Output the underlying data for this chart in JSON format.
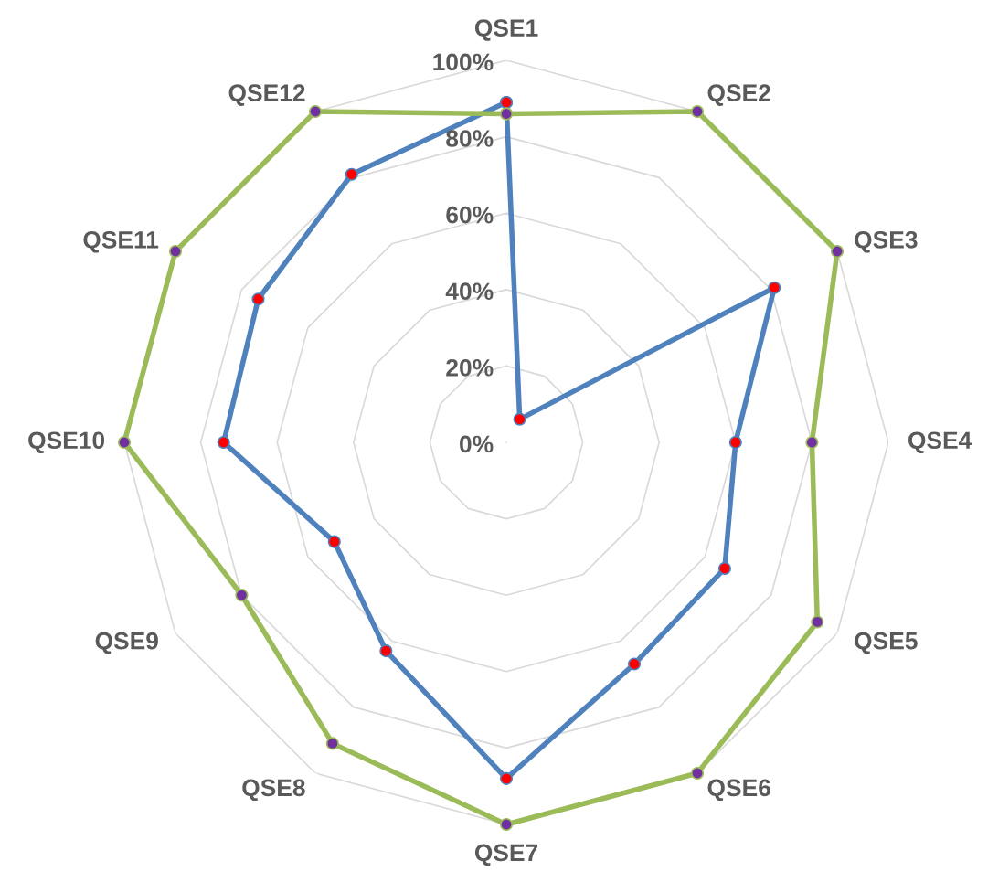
{
  "chart_data": {
    "type": "radar",
    "categories": [
      "QSE1",
      "QSE2",
      "QSE3",
      "QSE4",
      "QSE5",
      "QSE6",
      "QSE7",
      "QSE8",
      "QSE9",
      "QSE10",
      "QSE11",
      "QSE12"
    ],
    "series": [
      {
        "color": "#4f81bd",
        "values": [
          89,
          7,
          81,
          60,
          66,
          67,
          88,
          63,
          52,
          74,
          75,
          81
        ]
      },
      {
        "color": "#9bbb59",
        "values": [
          86,
          100,
          100,
          80,
          94,
          100,
          100,
          91,
          80,
          100,
          100,
          100
        ]
      }
    ],
    "ylim": [
      0,
      100
    ],
    "yticks": [
      {
        "value": 0,
        "label": "0%"
      },
      {
        "value": 20,
        "label": "20%"
      },
      {
        "value": 40,
        "label": "40%"
      },
      {
        "value": 60,
        "label": "60%"
      },
      {
        "value": 80,
        "label": "80%"
      },
      {
        "value": 100,
        "label": "100%"
      }
    ],
    "grid": true,
    "marker": "circle",
    "line_style": "solid"
  }
}
